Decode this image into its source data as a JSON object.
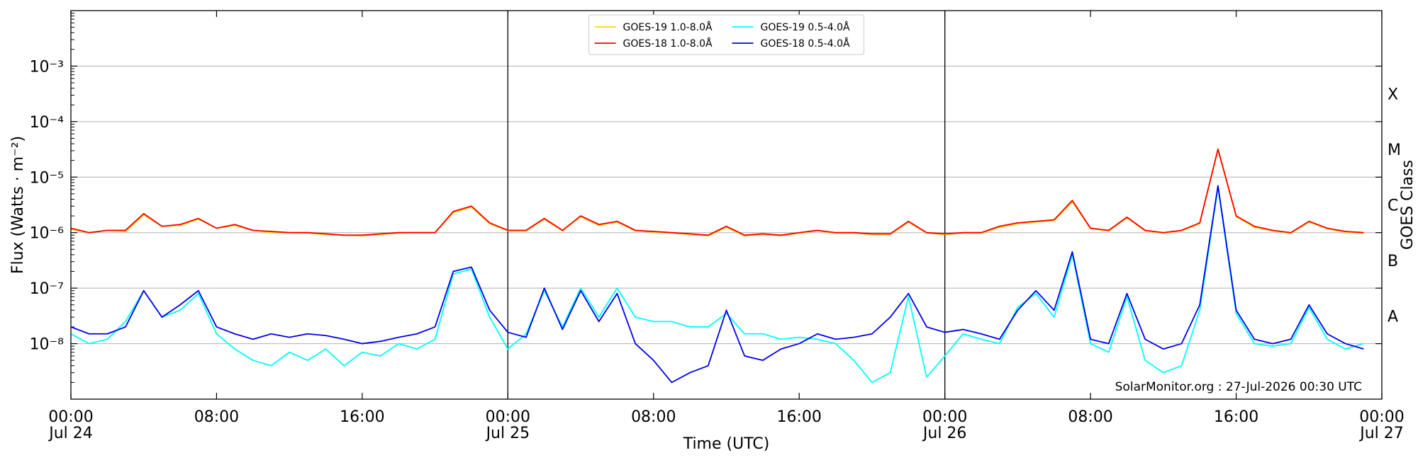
{
  "chart_data": {
    "type": "line",
    "xlabel": "Time (UTC)",
    "ylabel": "Flux (Watts · m⁻²)",
    "y2label": "GOES Class",
    "annotation": "SolarMonitor.org : 27-Jul-2026 00:30 UTC",
    "ylog": true,
    "grid": true,
    "legend": "upper center",
    "xlim": [
      0,
      72
    ],
    "xticks": [
      {
        "value": 0,
        "label": "00:00",
        "date": "Jul 24"
      },
      {
        "value": 8,
        "label": "08:00"
      },
      {
        "value": 16,
        "label": "16:00"
      },
      {
        "value": 24,
        "label": "00:00",
        "date": "Jul 25"
      },
      {
        "value": 32,
        "label": "08:00"
      },
      {
        "value": 40,
        "label": "16:00"
      },
      {
        "value": 48,
        "label": "00:00",
        "date": "Jul 26"
      },
      {
        "value": 56,
        "label": "08:00"
      },
      {
        "value": 64,
        "label": "16:00"
      },
      {
        "value": 72,
        "label": "00:00",
        "date": "Jul 27"
      }
    ],
    "ylim": [
      1e-09,
      0.01
    ],
    "yticks": [
      {
        "value": 1e-08,
        "label": "10⁻⁸"
      },
      {
        "value": 1e-07,
        "label": "10⁻⁷"
      },
      {
        "value": 1e-06,
        "label": "10⁻⁶"
      },
      {
        "value": 1e-05,
        "label": "10⁻⁵"
      },
      {
        "value": 0.0001,
        "label": "10⁻⁴"
      },
      {
        "value": 0.001,
        "label": "10⁻³"
      }
    ],
    "y2lim": [
      1e-09,
      0.01
    ],
    "y2ticks": [
      {
        "value": 3.16e-08,
        "label": "A"
      },
      {
        "value": 3.16e-07,
        "label": "B"
      },
      {
        "value": 3.16e-06,
        "label": "C"
      },
      {
        "value": 3.16e-05,
        "label": "M"
      },
      {
        "value": 0.000316,
        "label": "X"
      }
    ],
    "x": [
      0,
      1,
      2,
      3,
      4,
      5,
      6,
      7,
      8,
      9,
      10,
      11,
      12,
      13,
      14,
      15,
      16,
      17,
      18,
      19,
      20,
      21,
      22,
      23,
      24,
      25,
      26,
      27,
      28,
      29,
      30,
      31,
      32,
      33,
      34,
      35,
      36,
      37,
      38,
      39,
      40,
      41,
      42,
      43,
      44,
      45,
      46,
      47,
      48,
      49,
      50,
      51,
      52,
      53,
      54,
      55,
      56,
      57,
      58,
      59,
      60,
      61,
      62,
      63,
      64,
      65,
      66,
      67,
      68,
      69,
      70,
      71,
      72
    ],
    "series": [
      {
        "name": "GOES-19 1.0-8.0Å",
        "color": "#ffd700",
        "values": [
          1.15e-06,
          1e-06,
          1.1e-06,
          1.05e-06,
          2.1e-06,
          1.3e-06,
          1.35e-06,
          1.75e-06,
          1.2e-06,
          1.35e-06,
          1.1e-06,
          1e-06,
          1e-06,
          9.8e-07,
          9.3e-07,
          9e-07,
          8.8e-07,
          9.3e-07,
          9.8e-07,
          1e-06,
          1e-06,
          2.3e-06,
          2.9e-06,
          1.45e-06,
          1.08e-06,
          1.08e-06,
          1.75e-06,
          1.08e-06,
          1.95e-06,
          1.35e-06,
          1.55e-06,
          1.08e-06,
          1.02e-06,
          9.8e-07,
          9.3e-07,
          8.8e-07,
          1.25e-06,
          8.8e-07,
          9.3e-07,
          8.8e-07,
          9.8e-07,
          1.08e-06,
          9.8e-07,
          9.8e-07,
          9.3e-07,
          9.3e-07,
          1.55e-06,
          9.8e-07,
          9.3e-07,
          9.8e-07,
          9.8e-07,
          1.25e-06,
          1.45e-06,
          1.55e-06,
          1.65e-06,
          3.6e-06,
          1.18e-06,
          1.08e-06,
          1.85e-06,
          1.08e-06,
          9.8e-07,
          1.08e-06,
          1.45e-06,
          3.1e-05,
          1.95e-06,
          1.25e-06,
          1.08e-06,
          9.8e-07,
          1.55e-06,
          1.18e-06,
          1.02e-06,
          9.8e-07,
          null
        ]
      },
      {
        "name": "GOES-18 1.0-8.0Å",
        "color": "#ff0000",
        "values": [
          1.2e-06,
          1e-06,
          1.1e-06,
          1.1e-06,
          2.2e-06,
          1.3e-06,
          1.4e-06,
          1.8e-06,
          1.2e-06,
          1.4e-06,
          1.1e-06,
          1.05e-06,
          1e-06,
          1e-06,
          9.5e-07,
          9e-07,
          9e-07,
          9.5e-07,
          1e-06,
          1e-06,
          1e-06,
          2.4e-06,
          3e-06,
          1.5e-06,
          1.1e-06,
          1.1e-06,
          1.8e-06,
          1.1e-06,
          2e-06,
          1.4e-06,
          1.6e-06,
          1.1e-06,
          1.05e-06,
          1e-06,
          9.5e-07,
          9e-07,
          1.3e-06,
          9e-07,
          9.5e-07,
          9e-07,
          1e-06,
          1.1e-06,
          1e-06,
          1e-06,
          9.5e-07,
          9.5e-07,
          1.6e-06,
          1e-06,
          9.5e-07,
          1e-06,
          1e-06,
          1.3e-06,
          1.5e-06,
          1.6e-06,
          1.7e-06,
          3.8e-06,
          1.2e-06,
          1.1e-06,
          1.9e-06,
          1.1e-06,
          1e-06,
          1.1e-06,
          1.5e-06,
          3.2e-05,
          2e-06,
          1.3e-06,
          1.1e-06,
          1e-06,
          1.6e-06,
          1.2e-06,
          1.05e-06,
          1e-06,
          null
        ]
      },
      {
        "name": "GOES-19 0.5-4.0Å",
        "color": "#00ffff",
        "values": [
          1.5e-08,
          1e-08,
          1.2e-08,
          2.5e-08,
          9e-08,
          3e-08,
          4e-08,
          8e-08,
          1.5e-08,
          8e-09,
          5e-09,
          4e-09,
          7e-09,
          5e-09,
          8e-09,
          4e-09,
          7e-09,
          6e-09,
          1e-08,
          8e-09,
          1.2e-08,
          1.8e-07,
          2.2e-07,
          3e-08,
          8e-09,
          1.5e-08,
          9e-08,
          2e-08,
          1e-07,
          3e-08,
          1e-07,
          3e-08,
          2.5e-08,
          2.5e-08,
          2e-08,
          2e-08,
          3.5e-08,
          1.5e-08,
          1.5e-08,
          1.2e-08,
          1.3e-08,
          1.2e-08,
          1e-08,
          5e-09,
          2e-09,
          3e-09,
          7e-08,
          2.5e-09,
          6e-09,
          1.5e-08,
          1.2e-08,
          1e-08,
          4.5e-08,
          8e-08,
          3e-08,
          4e-07,
          1e-08,
          7e-09,
          7e-08,
          5e-09,
          3e-09,
          4e-09,
          4e-08,
          6.5e-06,
          3.5e-08,
          1e-08,
          9e-09,
          1e-08,
          4.5e-08,
          1.2e-08,
          8e-09,
          1e-08,
          null
        ]
      },
      {
        "name": "GOES-18 0.5-4.0Å",
        "color": "#0000ee",
        "values": [
          2e-08,
          1.5e-08,
          1.5e-08,
          2e-08,
          9e-08,
          3e-08,
          5e-08,
          9e-08,
          2e-08,
          1.5e-08,
          1.2e-08,
          1.5e-08,
          1.3e-08,
          1.5e-08,
          1.4e-08,
          1.2e-08,
          1e-08,
          1.1e-08,
          1.3e-08,
          1.5e-08,
          2e-08,
          2e-07,
          2.4e-07,
          4e-08,
          1.6e-08,
          1.3e-08,
          1e-07,
          1.8e-08,
          9e-08,
          2.5e-08,
          8e-08,
          1e-08,
          5e-09,
          2e-09,
          3e-09,
          4e-09,
          4e-08,
          6e-09,
          5e-09,
          8e-09,
          1e-08,
          1.5e-08,
          1.2e-08,
          1.3e-08,
          1.5e-08,
          3e-08,
          8e-08,
          2e-08,
          1.6e-08,
          1.8e-08,
          1.5e-08,
          1.2e-08,
          4e-08,
          9e-08,
          4e-08,
          4.5e-07,
          1.2e-08,
          1e-08,
          8e-08,
          1.2e-08,
          8e-09,
          1e-08,
          5e-08,
          7e-06,
          4e-08,
          1.2e-08,
          1e-08,
          1.2e-08,
          5e-08,
          1.5e-08,
          1e-08,
          8e-09,
          null
        ]
      }
    ]
  }
}
